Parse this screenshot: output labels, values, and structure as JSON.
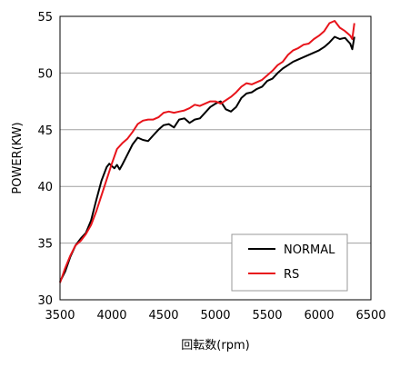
{
  "chart_data": {
    "type": "line",
    "title": "",
    "xlabel": "回転数(rpm)",
    "ylabel": "POWER(KW)",
    "xlim": [
      3500,
      6500
    ],
    "ylim": [
      30,
      55
    ],
    "x_ticks": [
      "3500",
      "4000",
      "4500",
      "5000",
      "5500",
      "6000",
      "6500"
    ],
    "y_ticks": [
      "30",
      "35",
      "40",
      "45",
      "50",
      "55"
    ],
    "grid": "horizontal",
    "legend_position": "bottom-right",
    "series": [
      {
        "name": "NORMAL",
        "color": "#000000",
        "x": [
          3500,
          3550,
          3600,
          3650,
          3700,
          3750,
          3800,
          3850,
          3900,
          3950,
          3975,
          4000,
          4025,
          4050,
          4075,
          4100,
          4150,
          4200,
          4250,
          4300,
          4350,
          4400,
          4450,
          4500,
          4550,
          4600,
          4650,
          4700,
          4750,
          4800,
          4850,
          4900,
          4950,
          5000,
          5050,
          5100,
          5150,
          5200,
          5250,
          5300,
          5350,
          5400,
          5450,
          5500,
          5550,
          5600,
          5650,
          5700,
          5750,
          5800,
          5850,
          5900,
          5950,
          6000,
          6050,
          6100,
          6150,
          6200,
          6250,
          6300,
          6320,
          6340
        ],
        "values": [
          31.6,
          32.5,
          33.8,
          34.8,
          35.4,
          35.9,
          37.0,
          38.8,
          40.5,
          41.7,
          42.0,
          41.8,
          41.6,
          41.9,
          41.5,
          41.9,
          42.8,
          43.7,
          44.3,
          44.1,
          44.0,
          44.5,
          45.0,
          45.4,
          45.5,
          45.2,
          45.9,
          46.0,
          45.6,
          45.9,
          46.0,
          46.5,
          47.0,
          47.3,
          47.5,
          46.8,
          46.6,
          47.0,
          47.8,
          48.2,
          48.3,
          48.6,
          48.8,
          49.3,
          49.5,
          50.0,
          50.4,
          50.7,
          51.0,
          51.2,
          51.4,
          51.6,
          51.8,
          52.0,
          52.3,
          52.7,
          53.2,
          53.0,
          53.1,
          52.6,
          52.1,
          53.2
        ]
      },
      {
        "name": "RS",
        "color": "#e8141b",
        "x": [
          3500,
          3550,
          3600,
          3650,
          3700,
          3750,
          3800,
          3850,
          3900,
          3950,
          4000,
          4050,
          4100,
          4150,
          4200,
          4250,
          4300,
          4350,
          4400,
          4450,
          4500,
          4550,
          4600,
          4650,
          4700,
          4750,
          4800,
          4850,
          4900,
          4950,
          5000,
          5050,
          5100,
          5150,
          5200,
          5250,
          5300,
          5350,
          5400,
          5450,
          5500,
          5550,
          5600,
          5650,
          5700,
          5750,
          5800,
          5850,
          5900,
          5950,
          6000,
          6050,
          6100,
          6150,
          6200,
          6250,
          6300,
          6320,
          6340
        ],
        "values": [
          31.5,
          32.8,
          33.9,
          34.8,
          35.2,
          35.8,
          36.6,
          37.8,
          39.2,
          40.6,
          42.0,
          43.3,
          43.8,
          44.2,
          44.8,
          45.5,
          45.8,
          45.9,
          45.9,
          46.1,
          46.5,
          46.6,
          46.5,
          46.6,
          46.7,
          46.9,
          47.2,
          47.1,
          47.3,
          47.5,
          47.5,
          47.3,
          47.6,
          47.9,
          48.3,
          48.8,
          49.1,
          49.0,
          49.2,
          49.4,
          49.8,
          50.2,
          50.7,
          51.0,
          51.6,
          52.0,
          52.2,
          52.5,
          52.6,
          53.0,
          53.3,
          53.7,
          54.4,
          54.6,
          54.0,
          53.7,
          53.3,
          53.0,
          54.4
        ]
      }
    ]
  }
}
